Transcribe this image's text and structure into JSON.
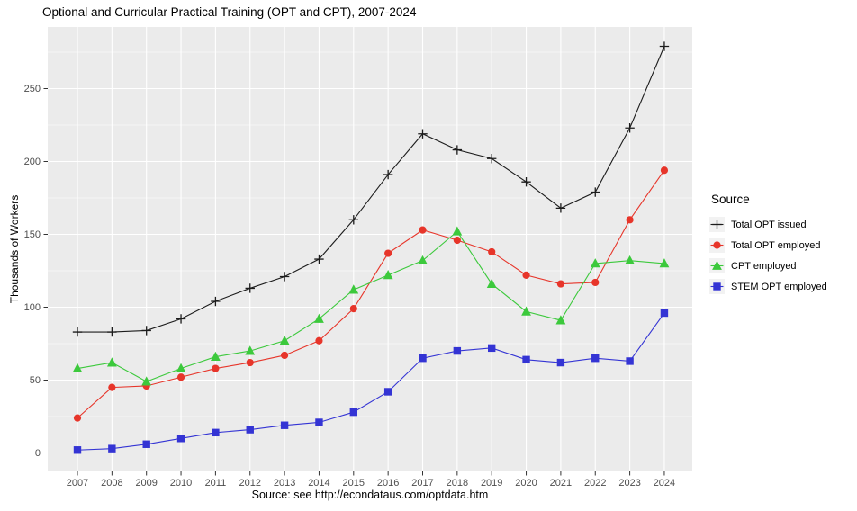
{
  "title": "Optional and Curricular Practical Training (OPT and CPT), 2007-2024",
  "caption": "Source: see http://econdataus.com/optdata.htm",
  "legend": {
    "title": "Source"
  },
  "colors": {
    "panel_background": "#ebebeb",
    "gridline": "#ffffff",
    "tick_mark": "#333333",
    "tick_label": "#4d4d4d",
    "series_black": "#1c1c1c",
    "series_red": "#e7352a",
    "series_green": "#3cc93c",
    "series_blue": "#3434d4"
  },
  "chart_data": {
    "type": "line",
    "title": "Optional and Curricular Practical Training (OPT and CPT), 2007-2024",
    "xlabel": "",
    "ylabel": "Thousands of Workers",
    "x": [
      2007,
      2008,
      2009,
      2010,
      2011,
      2012,
      2013,
      2014,
      2015,
      2016,
      2017,
      2018,
      2019,
      2020,
      2021,
      2022,
      2023,
      2024
    ],
    "y_ticks": [
      0,
      50,
      100,
      150,
      200,
      250
    ],
    "ylim": [
      -12,
      292
    ],
    "grid": true,
    "legend_position": "right",
    "legend_title": "Source",
    "series": [
      {
        "name": "Total OPT issued",
        "slug": "total-opt-issued",
        "color": "#1c1c1c",
        "marker": "plus",
        "values": [
          83,
          83,
          84,
          92,
          104,
          113,
          121,
          133,
          160,
          191,
          219,
          208,
          202,
          186,
          168,
          179,
          223,
          279
        ]
      },
      {
        "name": "Total OPT employed",
        "slug": "total-opt-employed",
        "color": "#e7352a",
        "marker": "circle",
        "values": [
          24,
          45,
          46,
          52,
          58,
          62,
          67,
          77,
          99,
          137,
          153,
          146,
          138,
          122,
          116,
          117,
          160,
          194
        ]
      },
      {
        "name": "CPT employed",
        "slug": "cpt-employed",
        "color": "#3cc93c",
        "marker": "triangle",
        "values": [
          58,
          62,
          49,
          58,
          66,
          70,
          77,
          92,
          112,
          122,
          132,
          152,
          116,
          97,
          91,
          130,
          132,
          130
        ]
      },
      {
        "name": "STEM OPT employed",
        "slug": "stem-opt-employed",
        "color": "#3434d4",
        "marker": "square",
        "values": [
          2,
          3,
          6,
          10,
          14,
          16,
          19,
          21,
          28,
          42,
          65,
          70,
          72,
          64,
          62,
          65,
          63,
          96
        ]
      }
    ]
  }
}
